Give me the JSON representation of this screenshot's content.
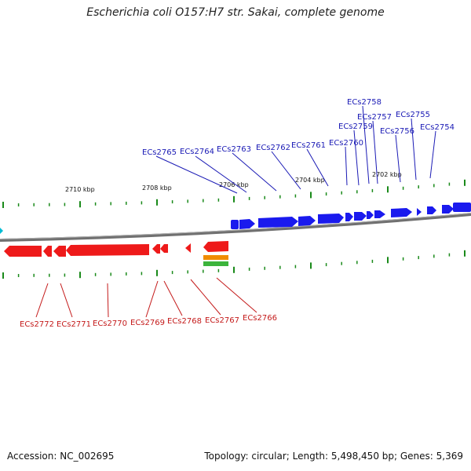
{
  "title": "Escherichia coli O157:H7 str. Sakai, complete genome",
  "footer": {
    "accession": "Accession: NC_002695",
    "summary": "Topology: circular; Length: 5,498,450 bp; Genes: 5,369"
  },
  "colors": {
    "forward": "#1a1aee",
    "reverse": "#ee1a1a",
    "tick": "#1a8a1a",
    "backbone": "#808080",
    "label_top": "#1a1ab5",
    "label_bottom": "#c41a1a",
    "extra_orange": "#f08c00",
    "extra_green": "#3cb43c",
    "edge_marker": "#00bcd4"
  },
  "scale_labels": [
    "2710 kbp",
    "2708 kbp",
    "2706 kbp",
    "2704 kbp",
    "2702 kbp"
  ],
  "genes_top": [
    "ECs2765",
    "ECs2764",
    "ECs2763",
    "ECs2762",
    "ECs2761",
    "ECs2760",
    "ECs2759",
    "ECs2758",
    "ECs2757",
    "ECs2756",
    "ECs2755",
    "ECs2754"
  ],
  "genes_bottom": [
    "ECs2772",
    "ECs2771",
    "ECs2770",
    "ECs2769",
    "ECs2768",
    "ECs2767",
    "ECs2766"
  ]
}
